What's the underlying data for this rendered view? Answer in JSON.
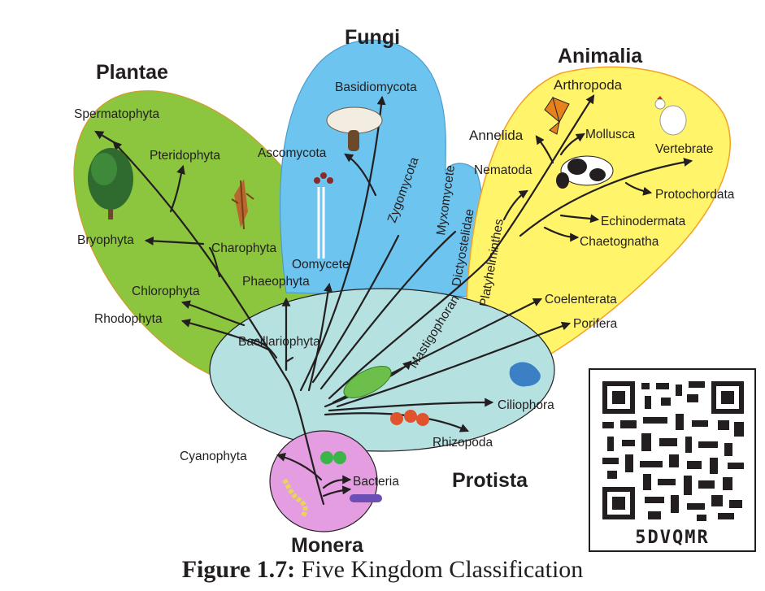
{
  "kingdoms": {
    "plantae": "Plantae",
    "fungi": "Fungi",
    "animalia": "Animalia",
    "protista": "Protista",
    "monera": "Monera"
  },
  "plantae_taxa": {
    "spermatophyta": "Spermatophyta",
    "pteridophyta": "Pteridophyta",
    "bryophyta": "Bryophyta",
    "charophyta": "Charophyta",
    "chlorophyta": "Chlorophyta",
    "rhodophyta": "Rhodophyta",
    "phaeophyta": "Phaeophyta"
  },
  "fungi_taxa": {
    "basidiomycota": "Basidiomycota",
    "ascomycota": "Ascomycota",
    "zygomycota": "Zygomycota",
    "myxomycete": "Myxomycete",
    "oomycete": "Oomycete"
  },
  "animalia_taxa": {
    "arthropoda": "Arthropoda",
    "annelida": "Annelida",
    "mollusca": "Mollusca",
    "vertebrate": "Vertebrate",
    "nematoda": "Nematoda",
    "protochordata": "Protochordata",
    "echinodermata": "Echinodermata",
    "chaetognatha": "Chaetognatha",
    "platyhelminthes": "Platyhelminthes",
    "dictyostelidae": "Dictyostelidae",
    "coelenterata": "Coelenterata",
    "porifera": "Porifera"
  },
  "protista_taxa": {
    "bacillariophyta": "Bacillariophyta",
    "mastigophoran": "Mastigophoran",
    "ciliophora": "Ciliophora",
    "rhizopoda": "Rhizopoda"
  },
  "monera_taxa": {
    "cyanophyta": "Cyanophyta",
    "bacteria": "Bacteria"
  },
  "colors": {
    "plantae": "#8cc63f",
    "fungi": "#6cc4ef",
    "animalia": "#fff46a",
    "protista": "#b5e1e0",
    "monera": "#e39de0",
    "outline": "#231f20"
  },
  "qr": {
    "code": "5DVQMR"
  },
  "caption": {
    "number": "Figure 1.7:",
    "text": "Five Kingdom Classification"
  }
}
